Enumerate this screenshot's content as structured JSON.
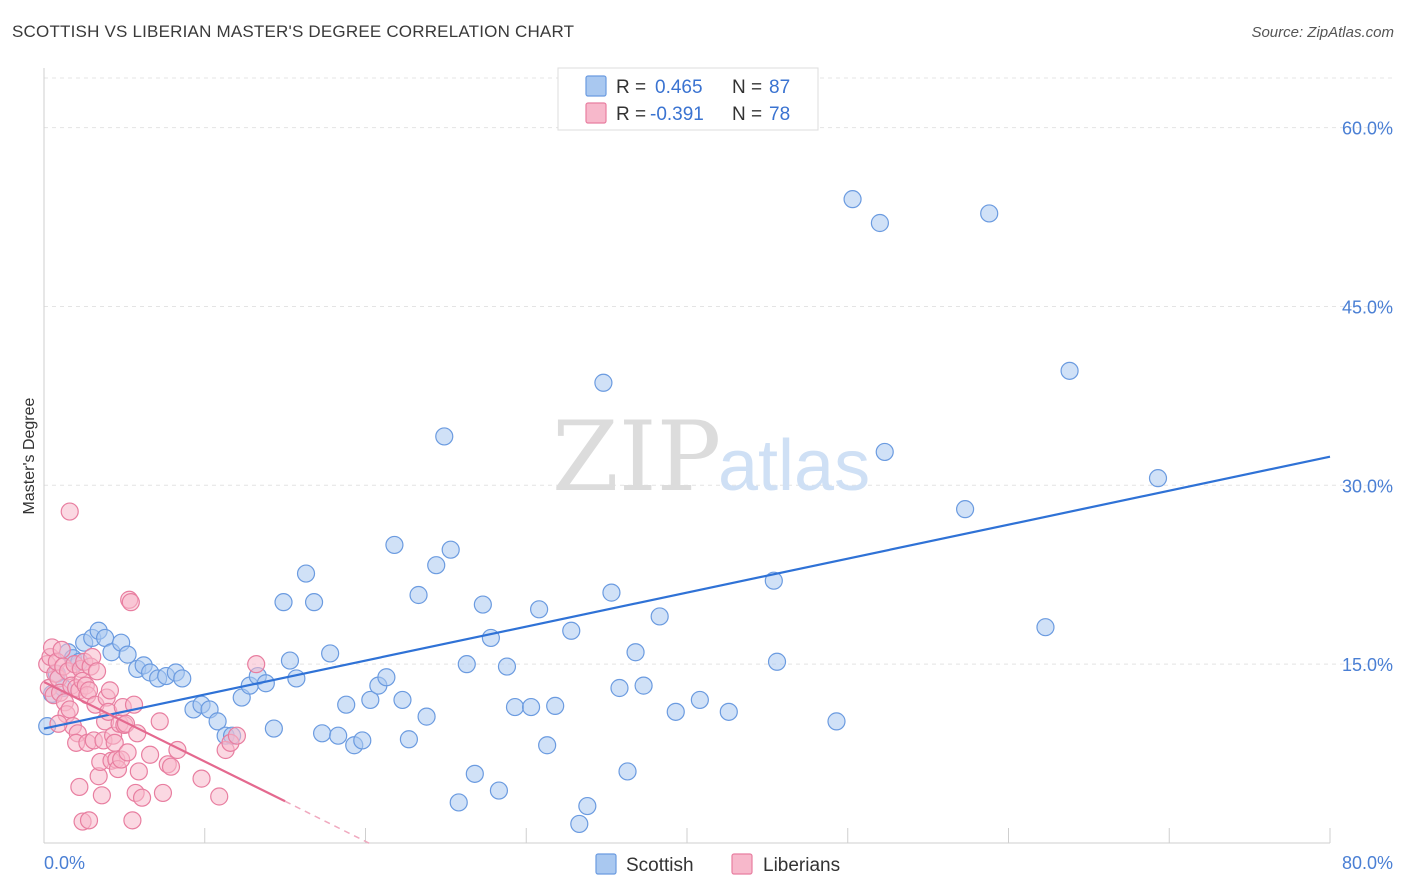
{
  "title": "SCOTTISH VS LIBERIAN MASTER'S DEGREE CORRELATION CHART",
  "source": "Source: ZipAtlas.com",
  "watermark": {
    "zip": "ZIP",
    "atlas": "atlas"
  },
  "legend": {
    "rows": [
      {
        "r_label": "R =",
        "r_value": "0.465",
        "n_label": "N =",
        "n_value": "87",
        "color": "#a9c8f0",
        "stroke": "#6b9be0"
      },
      {
        "r_label": "R =",
        "r_value": "-0.391",
        "n_label": "N =",
        "n_value": "78",
        "color": "#f7b8cb",
        "stroke": "#e87ea0"
      }
    ]
  },
  "bottom_legend": [
    {
      "label": "Scottish",
      "color": "#a9c8f0",
      "stroke": "#6b9be0"
    },
    {
      "label": "Liberians",
      "color": "#f7b8cb",
      "stroke": "#e87ea0"
    }
  ],
  "chart_data": {
    "type": "scatter",
    "title": "SCOTTISH VS LIBERIAN MASTER'S DEGREE CORRELATION CHART",
    "xlabel": "",
    "ylabel": "Master's Degree",
    "xlim": [
      0,
      80
    ],
    "ylim": [
      0,
      65
    ],
    "x_tick_labels": [
      "0.0%",
      "80.0%"
    ],
    "y_ticks": [
      15,
      30,
      45,
      60
    ],
    "y_tick_labels": [
      "15.0%",
      "30.0%",
      "45.0%",
      "60.0%"
    ],
    "grid": true,
    "legend_position": "top-center",
    "series": [
      {
        "name": "Scottish",
        "color": "#6b9be0",
        "fill": "#a9c8f0",
        "trend": {
          "x": [
            0,
            80
          ],
          "y": [
            9.6,
            32.4
          ]
        },
        "points": [
          [
            0.2,
            9.8
          ],
          [
            0.5,
            12.5
          ],
          [
            0.8,
            14.2
          ],
          [
            1.2,
            13.0
          ],
          [
            1.5,
            16.0
          ],
          [
            1.8,
            15.5
          ],
          [
            2.2,
            15.2
          ],
          [
            2.5,
            16.8
          ],
          [
            3.0,
            17.2
          ],
          [
            3.4,
            17.8
          ],
          [
            3.8,
            17.2
          ],
          [
            4.2,
            16.0
          ],
          [
            4.8,
            16.8
          ],
          [
            5.2,
            15.8
          ],
          [
            5.8,
            14.6
          ],
          [
            6.2,
            14.9
          ],
          [
            6.6,
            14.3
          ],
          [
            7.1,
            13.8
          ],
          [
            7.6,
            14.0
          ],
          [
            8.2,
            14.3
          ],
          [
            8.6,
            13.8
          ],
          [
            9.3,
            11.2
          ],
          [
            9.8,
            11.6
          ],
          [
            10.3,
            11.2
          ],
          [
            10.8,
            10.2
          ],
          [
            11.3,
            9.0
          ],
          [
            11.7,
            9.0
          ],
          [
            12.3,
            12.2
          ],
          [
            12.8,
            13.2
          ],
          [
            13.3,
            14.0
          ],
          [
            13.8,
            13.4
          ],
          [
            14.3,
            9.6
          ],
          [
            14.9,
            20.2
          ],
          [
            15.3,
            15.3
          ],
          [
            15.7,
            13.8
          ],
          [
            16.3,
            22.6
          ],
          [
            16.8,
            20.2
          ],
          [
            17.3,
            9.2
          ],
          [
            17.8,
            15.9
          ],
          [
            18.3,
            9.0
          ],
          [
            18.8,
            11.6
          ],
          [
            19.3,
            8.2
          ],
          [
            19.8,
            8.6
          ],
          [
            20.3,
            12.0
          ],
          [
            20.8,
            13.2
          ],
          [
            21.3,
            13.9
          ],
          [
            21.8,
            25.0
          ],
          [
            22.3,
            12.0
          ],
          [
            22.7,
            8.7
          ],
          [
            23.3,
            20.8
          ],
          [
            23.8,
            10.6
          ],
          [
            24.4,
            23.3
          ],
          [
            24.9,
            34.1
          ],
          [
            25.3,
            24.6
          ],
          [
            25.8,
            3.4
          ],
          [
            26.3,
            15.0
          ],
          [
            26.8,
            5.8
          ],
          [
            27.3,
            20.0
          ],
          [
            27.8,
            17.2
          ],
          [
            28.3,
            4.4
          ],
          [
            28.8,
            14.8
          ],
          [
            29.3,
            11.4
          ],
          [
            30.3,
            11.4
          ],
          [
            30.8,
            19.6
          ],
          [
            31.3,
            8.2
          ],
          [
            31.8,
            11.5
          ],
          [
            32.8,
            17.8
          ],
          [
            33.3,
            1.6
          ],
          [
            33.8,
            3.1
          ],
          [
            34.8,
            38.6
          ],
          [
            35.3,
            21.0
          ],
          [
            35.8,
            13.0
          ],
          [
            36.3,
            6.0
          ],
          [
            36.8,
            16.0
          ],
          [
            37.3,
            13.2
          ],
          [
            38.3,
            19.0
          ],
          [
            39.3,
            11.0
          ],
          [
            40.8,
            12.0
          ],
          [
            42.6,
            11.0
          ],
          [
            45.4,
            22.0
          ],
          [
            45.6,
            15.2
          ],
          [
            49.3,
            10.2
          ],
          [
            50.3,
            54.0
          ],
          [
            52.0,
            52.0
          ],
          [
            52.3,
            32.8
          ],
          [
            57.3,
            28.0
          ],
          [
            58.8,
            52.8
          ],
          [
            62.3,
            18.1
          ],
          [
            63.8,
            39.6
          ],
          [
            69.3,
            30.6
          ]
        ]
      },
      {
        "name": "Liberians",
        "color": "#e87ea0",
        "fill": "#f7b8cb",
        "trend": {
          "x": [
            0,
            15
          ],
          "y": [
            13.5,
            3.5
          ]
        },
        "trend_dashed": {
          "x": [
            15,
            20.5
          ],
          "y": [
            3.5,
            -0.2
          ]
        },
        "points": [
          [
            0.2,
            15.0
          ],
          [
            0.3,
            13.0
          ],
          [
            0.4,
            15.6
          ],
          [
            0.5,
            16.4
          ],
          [
            0.6,
            12.4
          ],
          [
            0.7,
            14.2
          ],
          [
            0.8,
            15.2
          ],
          [
            0.9,
            13.8
          ],
          [
            1.0,
            12.6
          ],
          [
            1.1,
            16.2
          ],
          [
            1.2,
            14.8
          ],
          [
            1.3,
            11.8
          ],
          [
            1.4,
            10.8
          ],
          [
            1.5,
            14.4
          ],
          [
            1.6,
            11.2
          ],
          [
            1.7,
            13.2
          ],
          [
            1.8,
            9.8
          ],
          [
            1.9,
            15.0
          ],
          [
            2.0,
            13.0
          ],
          [
            2.1,
            9.2
          ],
          [
            2.2,
            12.8
          ],
          [
            2.3,
            14.6
          ],
          [
            2.4,
            13.6
          ],
          [
            2.5,
            15.2
          ],
          [
            2.6,
            13.2
          ],
          [
            2.7,
            12.4
          ],
          [
            2.8,
            12.8
          ],
          [
            2.9,
            14.8
          ],
          [
            1.6,
            27.8
          ],
          [
            2.0,
            8.4
          ],
          [
            2.2,
            4.7
          ],
          [
            2.4,
            1.8
          ],
          [
            2.7,
            8.4
          ],
          [
            2.8,
            1.9
          ],
          [
            3.0,
            15.6
          ],
          [
            3.1,
            8.6
          ],
          [
            3.2,
            11.6
          ],
          [
            3.3,
            14.4
          ],
          [
            3.4,
            5.6
          ],
          [
            3.5,
            6.8
          ],
          [
            3.6,
            4.0
          ],
          [
            3.7,
            8.6
          ],
          [
            3.8,
            10.2
          ],
          [
            3.9,
            12.2
          ],
          [
            4.0,
            11.0
          ],
          [
            4.1,
            12.8
          ],
          [
            4.2,
            6.9
          ],
          [
            4.3,
            9.0
          ],
          [
            4.4,
            8.4
          ],
          [
            4.5,
            7.0
          ],
          [
            4.6,
            6.2
          ],
          [
            4.7,
            10.0
          ],
          [
            4.8,
            7.0
          ],
          [
            4.9,
            11.4
          ],
          [
            5.0,
            9.9
          ],
          [
            5.1,
            10.0
          ],
          [
            5.2,
            7.6
          ],
          [
            5.3,
            20.4
          ],
          [
            5.4,
            20.2
          ],
          [
            5.5,
            1.9
          ],
          [
            5.6,
            11.6
          ],
          [
            5.7,
            4.2
          ],
          [
            5.8,
            9.2
          ],
          [
            5.9,
            6.0
          ],
          [
            6.1,
            3.8
          ],
          [
            6.6,
            7.4
          ],
          [
            7.2,
            10.2
          ],
          [
            7.4,
            4.2
          ],
          [
            7.7,
            6.6
          ],
          [
            7.9,
            6.4
          ],
          [
            8.3,
            7.8
          ],
          [
            9.8,
            5.4
          ],
          [
            10.9,
            3.9
          ],
          [
            11.3,
            7.8
          ],
          [
            11.6,
            8.4
          ],
          [
            13.2,
            15.0
          ],
          [
            12.0,
            9.0
          ],
          [
            0.9,
            10.0
          ]
        ]
      }
    ]
  }
}
